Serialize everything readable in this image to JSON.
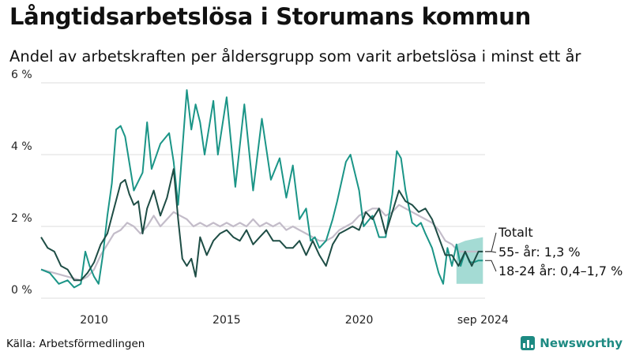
{
  "title": "Långtidsarbetslösa i Storumans kommun",
  "subtitle": "Andel av arbetskraften per åldersgrupp som varit arbetslösa i minst ett år",
  "source": "Källa: Arbetsförmedlingen",
  "brand": "Newsworthy",
  "colors": {
    "series_55": "#1e4d45",
    "series_1824": "#1b9587",
    "series_total": "#c3bcc9",
    "band": "#86cfc5",
    "grid": "#dddddd",
    "brand": "#1d8a82"
  },
  "chart_data": {
    "type": "line",
    "title": "Långtidsarbetslösa i Storumans kommun",
    "subtitle": "Andel av arbetskraften per åldersgrupp som varit arbetslösa i minst ett år",
    "ylim": [
      0,
      6
    ],
    "xlim": [
      2008.0,
      2024.75
    ],
    "y_ticks": [
      {
        "value": 0,
        "label": "0 %"
      },
      {
        "value": 2,
        "label": "2 %"
      },
      {
        "value": 4,
        "label": "4 %"
      },
      {
        "value": 6,
        "label": "6 %"
      }
    ],
    "x_ticks": [
      {
        "value": 2010,
        "label": "2010"
      },
      {
        "value": 2015,
        "label": "2015"
      },
      {
        "value": 2020,
        "label": "2020"
      },
      {
        "value": 2024.67,
        "label": "sep 2024"
      }
    ],
    "grid": "horizontal",
    "legend_placement": "right-end",
    "labels": {
      "total": "Totalt",
      "s55": "55- år: 1,3 %",
      "s1824": "18-24 år: 0,4–1,7 %"
    },
    "series": [
      {
        "name": "18-24 år",
        "key": "s1824",
        "x": [
          2008.0,
          2008.33,
          2008.67,
          2009.0,
          2009.25,
          2009.5,
          2009.67,
          2009.83,
          2010.0,
          2010.17,
          2010.33,
          2010.5,
          2010.67,
          2010.83,
          2011.0,
          2011.17,
          2011.5,
          2011.83,
          2012.0,
          2012.17,
          2012.5,
          2012.83,
          2013.0,
          2013.17,
          2013.5,
          2013.67,
          2013.83,
          2014.0,
          2014.17,
          2014.5,
          2014.67,
          2015.0,
          2015.33,
          2015.67,
          2016.0,
          2016.33,
          2016.67,
          2017.0,
          2017.25,
          2017.5,
          2017.75,
          2018.0,
          2018.17,
          2018.33,
          2018.5,
          2018.75,
          2019.0,
          2019.17,
          2019.5,
          2019.67,
          2020.0,
          2020.17,
          2020.5,
          2020.75,
          2021.0,
          2021.25,
          2021.42,
          2021.58,
          2021.75,
          2022.0,
          2022.17,
          2022.33,
          2022.5,
          2022.75,
          2023.0,
          2023.17,
          2023.33,
          2023.5,
          2023.67,
          2023.83,
          2024.0,
          2024.17,
          2024.33,
          2024.5,
          2024.67
        ],
        "y": [
          0.8,
          0.7,
          0.4,
          0.5,
          0.3,
          0.4,
          1.3,
          0.9,
          0.6,
          0.4,
          1.2,
          2.3,
          3.2,
          4.7,
          4.8,
          4.5,
          3.0,
          3.5,
          4.9,
          3.6,
          4.3,
          4.6,
          3.8,
          2.6,
          5.8,
          4.7,
          5.4,
          4.9,
          4.0,
          5.5,
          4.0,
          5.6,
          3.1,
          5.4,
          3.0,
          5.0,
          3.3,
          3.9,
          2.8,
          3.7,
          2.2,
          2.5,
          1.6,
          1.7,
          1.4,
          1.6,
          2.2,
          2.7,
          3.8,
          4.0,
          3.0,
          2.0,
          2.3,
          1.7,
          1.7,
          2.9,
          4.1,
          3.9,
          3.0,
          2.1,
          2.0,
          2.1,
          1.8,
          1.4,
          0.7,
          0.4,
          1.4,
          0.9,
          1.5,
          0.9,
          1.3,
          1.0,
          1.0,
          1.05,
          1.05
        ]
      },
      {
        "name": "55- år",
        "key": "s55",
        "x": [
          2008.0,
          2008.25,
          2008.5,
          2008.75,
          2009.0,
          2009.25,
          2009.5,
          2009.75,
          2010.0,
          2010.25,
          2010.5,
          2010.75,
          2011.0,
          2011.17,
          2011.33,
          2011.5,
          2011.67,
          2011.83,
          2012.0,
          2012.25,
          2012.5,
          2012.75,
          2013.0,
          2013.17,
          2013.33,
          2013.5,
          2013.67,
          2013.83,
          2014.0,
          2014.25,
          2014.5,
          2014.75,
          2015.0,
          2015.25,
          2015.5,
          2015.75,
          2016.0,
          2016.25,
          2016.5,
          2016.75,
          2017.0,
          2017.25,
          2017.5,
          2017.75,
          2018.0,
          2018.25,
          2018.5,
          2018.75,
          2019.0,
          2019.25,
          2019.5,
          2019.75,
          2020.0,
          2020.25,
          2020.5,
          2020.75,
          2021.0,
          2021.25,
          2021.5,
          2021.75,
          2022.0,
          2022.25,
          2022.5,
          2022.75,
          2023.0,
          2023.25,
          2023.5,
          2023.75,
          2024.0,
          2024.25,
          2024.5,
          2024.67
        ],
        "y": [
          1.7,
          1.4,
          1.3,
          0.9,
          0.8,
          0.5,
          0.5,
          0.7,
          1.0,
          1.5,
          1.8,
          2.5,
          3.2,
          3.3,
          2.9,
          2.6,
          2.7,
          1.8,
          2.5,
          3.0,
          2.3,
          2.8,
          3.6,
          2.2,
          1.1,
          0.9,
          1.1,
          0.6,
          1.7,
          1.2,
          1.6,
          1.8,
          1.9,
          1.7,
          1.6,
          1.9,
          1.5,
          1.7,
          1.9,
          1.6,
          1.6,
          1.4,
          1.4,
          1.6,
          1.2,
          1.6,
          1.2,
          0.9,
          1.5,
          1.8,
          1.9,
          2.0,
          1.9,
          2.4,
          2.2,
          2.5,
          1.8,
          2.4,
          3.0,
          2.7,
          2.6,
          2.4,
          2.5,
          2.2,
          1.7,
          1.2,
          1.2,
          0.9,
          1.3,
          0.9,
          1.3,
          1.3
        ]
      },
      {
        "name": "Totalt",
        "key": "total",
        "x": [
          2008.0,
          2008.5,
          2009.0,
          2009.5,
          2009.75,
          2010.0,
          2010.25,
          2010.5,
          2010.75,
          2011.0,
          2011.25,
          2011.5,
          2011.75,
          2012.0,
          2012.25,
          2012.5,
          2012.75,
          2013.0,
          2013.25,
          2013.5,
          2013.75,
          2014.0,
          2014.25,
          2014.5,
          2014.75,
          2015.0,
          2015.25,
          2015.5,
          2015.75,
          2016.0,
          2016.25,
          2016.5,
          2016.75,
          2017.0,
          2017.25,
          2017.5,
          2017.75,
          2018.0,
          2018.25,
          2018.5,
          2018.75,
          2019.0,
          2019.25,
          2019.5,
          2019.75,
          2020.0,
          2020.25,
          2020.5,
          2020.75,
          2021.0,
          2021.25,
          2021.5,
          2021.75,
          2022.0,
          2022.25,
          2022.5,
          2022.75,
          2023.0,
          2023.25,
          2023.5,
          2023.75,
          2024.0,
          2024.25,
          2024.5,
          2024.67
        ],
        "y": [
          0.8,
          0.7,
          0.6,
          0.5,
          0.6,
          0.8,
          1.2,
          1.5,
          1.8,
          1.9,
          2.1,
          2.0,
          1.8,
          2.0,
          2.3,
          2.0,
          2.2,
          2.4,
          2.3,
          2.2,
          2.0,
          2.1,
          2.0,
          2.1,
          2.0,
          2.1,
          2.0,
          2.1,
          2.0,
          2.2,
          2.0,
          2.1,
          2.0,
          2.1,
          1.9,
          2.0,
          1.9,
          1.8,
          1.7,
          1.6,
          1.6,
          1.7,
          1.9,
          2.0,
          2.1,
          2.3,
          2.4,
          2.5,
          2.5,
          2.3,
          2.4,
          2.6,
          2.5,
          2.4,
          2.3,
          2.2,
          2.1,
          1.9,
          1.6,
          1.5,
          1.3,
          1.3,
          1.3,
          1.3,
          1.3
        ]
      }
    ],
    "band": {
      "name": "18-24 år",
      "x": [
        2023.67,
        2024.0,
        2024.33,
        2024.67
      ],
      "low": [
        0.4,
        0.4,
        0.4,
        0.4
      ],
      "high": [
        1.5,
        1.6,
        1.65,
        1.7
      ]
    }
  }
}
